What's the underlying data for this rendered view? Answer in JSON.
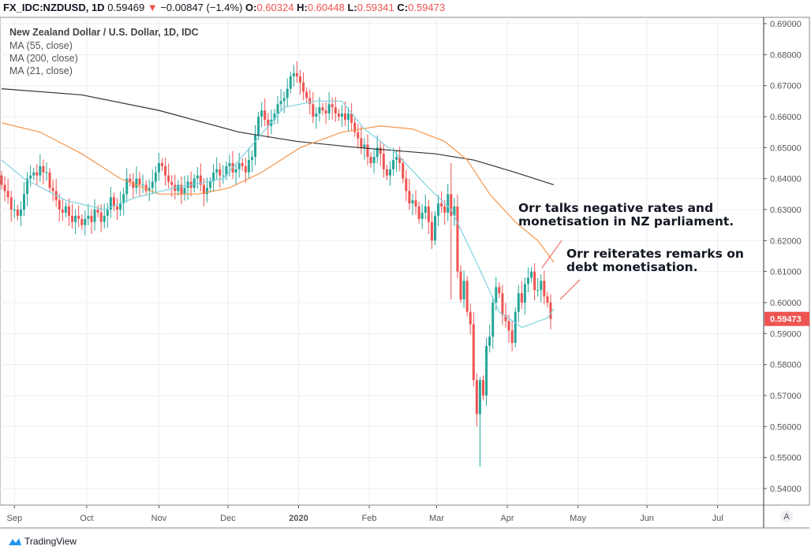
{
  "header": {
    "symbol": "FX_IDC:NZDUSD, 1D",
    "last": "0.59469",
    "arrow": "▼",
    "change": "−0.00847 (−1.4%)",
    "o_label": "O:",
    "o": "0.60324",
    "h_label": "H:",
    "h": "0.60448",
    "l_label": "L:",
    "l": "0.59341",
    "c_label": "C:",
    "c": "0.59473"
  },
  "legend": [
    "New Zealand Dollar / U.S. Dollar, 1D, IDC",
    "MA (55, close)",
    "MA (200, close)",
    "MA (21, close)"
  ],
  "brand": "TradingView",
  "auto_button": "A",
  "colors": {
    "up": "#26a69a",
    "down": "#ef5350",
    "ma55": "#f7964a",
    "ma200": "#333333",
    "ma21": "#7fd3e0",
    "grid": "#e8eef5"
  },
  "chart_data": {
    "type": "candlestick",
    "title": "New Zealand Dollar / U.S. Dollar, 1D, IDC",
    "ylim": [
      0.535,
      0.692
    ],
    "y_ticks": [
      "0.69000",
      "0.68000",
      "0.67000",
      "0.66000",
      "0.65000",
      "0.64000",
      "0.63000",
      "0.62000",
      "0.61000",
      "0.60000",
      "0.59000",
      "0.58000",
      "0.57000",
      "0.56000",
      "0.55000",
      "0.54000"
    ],
    "x_ticks": [
      {
        "label": "Sep",
        "day": 4
      },
      {
        "label": "Oct",
        "day": 26.5
      },
      {
        "label": "Nov",
        "day": 49
      },
      {
        "label": "Dec",
        "day": 70.5
      },
      {
        "label": "2020",
        "day": 92.5
      },
      {
        "label": "Feb",
        "day": 114.5
      },
      {
        "label": "Mar",
        "day": 135.5
      },
      {
        "label": "Apr",
        "day": 157.5
      },
      {
        "label": "May",
        "day": 179.5
      },
      {
        "label": "Jun",
        "day": 201
      },
      {
        "label": "Jul",
        "day": 223
      }
    ],
    "last_price": "0.59473",
    "closes": [
      0.638,
      0.636,
      0.634,
      0.63,
      0.63,
      0.628,
      0.63,
      0.635,
      0.64,
      0.641,
      0.642,
      0.641,
      0.644,
      0.642,
      0.642,
      0.637,
      0.636,
      0.633,
      0.63,
      0.629,
      0.631,
      0.628,
      0.626,
      0.628,
      0.627,
      0.625,
      0.627,
      0.628,
      0.626,
      0.63,
      0.629,
      0.626,
      0.628,
      0.63,
      0.634,
      0.631,
      0.63,
      0.632,
      0.635,
      0.64,
      0.639,
      0.637,
      0.64,
      0.638,
      0.638,
      0.636,
      0.637,
      0.639,
      0.642,
      0.645,
      0.644,
      0.641,
      0.639,
      0.638,
      0.636,
      0.638,
      0.635,
      0.637,
      0.639,
      0.637,
      0.64,
      0.641,
      0.638,
      0.635,
      0.637,
      0.639,
      0.642,
      0.643,
      0.641,
      0.641,
      0.644,
      0.645,
      0.642,
      0.643,
      0.645,
      0.644,
      0.642,
      0.646,
      0.647,
      0.654,
      0.66,
      0.662,
      0.659,
      0.657,
      0.659,
      0.661,
      0.664,
      0.665,
      0.666,
      0.669,
      0.673,
      0.674,
      0.673,
      0.671,
      0.668,
      0.666,
      0.664,
      0.66,
      0.661,
      0.663,
      0.662,
      0.661,
      0.664,
      0.663,
      0.661,
      0.66,
      0.661,
      0.659,
      0.661,
      0.658,
      0.655,
      0.653,
      0.65,
      0.651,
      0.647,
      0.645,
      0.647,
      0.65,
      0.648,
      0.643,
      0.641,
      0.643,
      0.646,
      0.647,
      0.645,
      0.64,
      0.636,
      0.632,
      0.633,
      0.631,
      0.627,
      0.629,
      0.631,
      0.626,
      0.62,
      0.628,
      0.632,
      0.631,
      0.629,
      0.635,
      0.628,
      0.631,
      0.61,
      0.601,
      0.607,
      0.597,
      0.593,
      0.575,
      0.564,
      0.575,
      0.57,
      0.586,
      0.589,
      0.6,
      0.605,
      0.603,
      0.596,
      0.594,
      0.591,
      0.587,
      0.597,
      0.603,
      0.6,
      0.606,
      0.608,
      0.61,
      0.604,
      0.604,
      0.607,
      0.602,
      0.6,
      0.5947
    ],
    "first_open": 0.641,
    "special_wicks": [
      {
        "day": 140,
        "high": 0.645,
        "low": 0.601
      },
      {
        "day": 149,
        "high": 0.576,
        "low": 0.547
      },
      {
        "day": 143,
        "high": 0.612,
        "low": 0.6
      }
    ],
    "ma55": [
      [
        0,
        0.658
      ],
      [
        12,
        0.655
      ],
      [
        25,
        0.648
      ],
      [
        37,
        0.64
      ],
      [
        49,
        0.635
      ],
      [
        61,
        0.635
      ],
      [
        71,
        0.637
      ],
      [
        81,
        0.642
      ],
      [
        93,
        0.65
      ],
      [
        106,
        0.655
      ],
      [
        118,
        0.657
      ],
      [
        128,
        0.656
      ],
      [
        138,
        0.652
      ],
      [
        145,
        0.646
      ],
      [
        152,
        0.635
      ],
      [
        160,
        0.626
      ],
      [
        167,
        0.62
      ],
      [
        172,
        0.613
      ]
    ],
    "ma200": [
      [
        0,
        0.669
      ],
      [
        25,
        0.667
      ],
      [
        49,
        0.662
      ],
      [
        74,
        0.655
      ],
      [
        92,
        0.652
      ],
      [
        111,
        0.65
      ],
      [
        135,
        0.648
      ],
      [
        147,
        0.646
      ],
      [
        160,
        0.642
      ],
      [
        172,
        0.638
      ]
    ],
    "ma21": [
      [
        0,
        0.646
      ],
      [
        7,
        0.64
      ],
      [
        20,
        0.633
      ],
      [
        32,
        0.63
      ],
      [
        42,
        0.634
      ],
      [
        54,
        0.637
      ],
      [
        69,
        0.64
      ],
      [
        79,
        0.652
      ],
      [
        88,
        0.663
      ],
      [
        98,
        0.665
      ],
      [
        106,
        0.665
      ],
      [
        113,
        0.656
      ],
      [
        123,
        0.648
      ],
      [
        133,
        0.637
      ],
      [
        140,
        0.63
      ],
      [
        147,
        0.615
      ],
      [
        155,
        0.597
      ],
      [
        162,
        0.592
      ],
      [
        170,
        0.595
      ],
      [
        172,
        0.598
      ]
    ],
    "annotations": [
      "Orr talks negative rates and",
      "monetisation in NZ parliament.",
      "Orr reiterates remarks on",
      "debt monetisation."
    ]
  }
}
